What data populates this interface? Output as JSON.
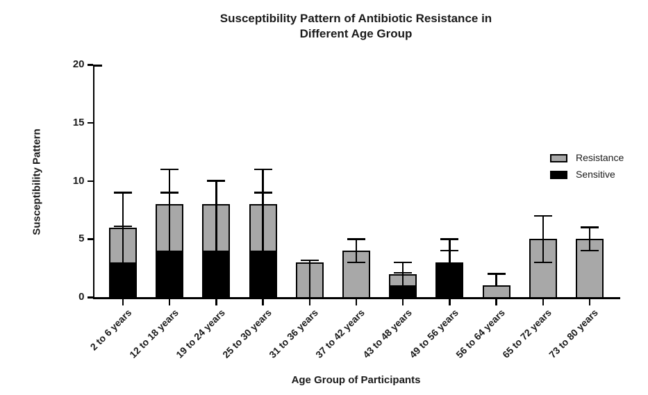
{
  "chart_data": {
    "type": "bar",
    "subtype": "stacked-with-error-bars",
    "title": "Susceptibility Pattern of Antibiotic Resistance in Different Age Group",
    "title_lines": [
      "Susceptibility Pattern of Antibiotic Resistance in",
      "Different Age Group"
    ],
    "xlabel": "Age Group of Participants",
    "ylabel": "Susceptibility Pattern",
    "ylim": [
      0,
      20
    ],
    "yticks": [
      0,
      5,
      10,
      15,
      20
    ],
    "grid": false,
    "legend_position": "right-inside",
    "legend": [
      {
        "label": "Resistance",
        "color": "#a8a8a8"
      },
      {
        "label": "Sensitive",
        "color": "#000000"
      }
    ],
    "categories": [
      "2 to 6 years",
      "12 to 18 years",
      "19 to 24 years",
      "25 to 30 years",
      "31 to 36 years",
      "37 to 42 years",
      "43 to 48 years",
      "49 to 56 years",
      "56 to 64 years",
      "65 to 72 years",
      "73 to 80 years"
    ],
    "series": [
      {
        "name": "Sensitive",
        "color": "#000000",
        "values": [
          3,
          4,
          4,
          4,
          0,
          0,
          1,
          3,
          0,
          0,
          0
        ]
      },
      {
        "name": "Resistance",
        "color": "#a8a8a8",
        "values": [
          3,
          4,
          4,
          4,
          3,
          4,
          1,
          0,
          1,
          5,
          5
        ]
      }
    ],
    "totals": [
      6,
      8,
      8,
      8,
      3,
      4,
      2,
      3,
      1,
      5,
      5
    ],
    "error_bars": [
      {
        "line_from": 3,
        "line_to": 9,
        "caps": [
          6.1,
          9
        ]
      },
      {
        "line_from": 4,
        "line_to": 11,
        "caps": [
          9,
          11
        ]
      },
      {
        "line_from": 4,
        "line_to": 10,
        "caps": [
          10
        ]
      },
      {
        "line_from": 4,
        "line_to": 11,
        "caps": [
          9,
          11
        ]
      },
      {
        "line_from": 0,
        "line_to": 3.15,
        "caps": [
          3.15
        ]
      },
      {
        "line_from": 3,
        "line_to": 5,
        "caps": [
          3,
          5
        ]
      },
      {
        "line_from": 1,
        "line_to": 3,
        "caps": [
          2.1,
          3
        ]
      },
      {
        "line_from": 3,
        "line_to": 5,
        "caps": [
          4,
          5
        ]
      },
      {
        "line_from": 1,
        "line_to": 2,
        "caps": [
          2
        ]
      },
      {
        "line_from": 3,
        "line_to": 7,
        "caps": [
          3,
          7
        ]
      },
      {
        "line_from": 4,
        "line_to": 6,
        "caps": [
          4,
          6
        ]
      }
    ],
    "axis_color": "#000000",
    "background_color": "#ffffff"
  }
}
